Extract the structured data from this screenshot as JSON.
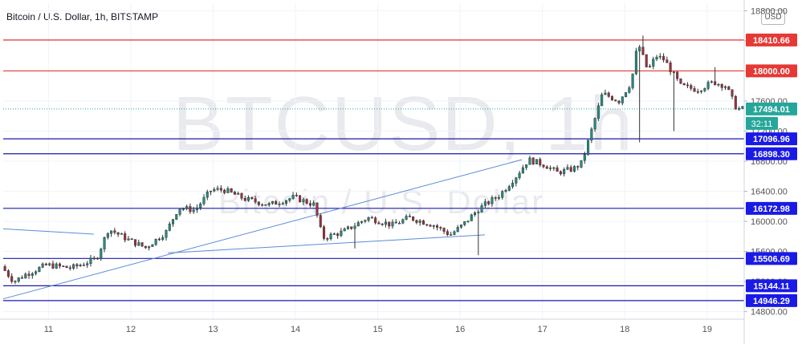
{
  "title": "Bitcoin / U.S. Dollar, 1h, BITSTAMP",
  "currency_button": "USD",
  "watermark": {
    "symbol": "BTCUSD, 1h",
    "description": "Bitcoin / U.S. Dollar"
  },
  "chart_data": {
    "type": "candlestick",
    "ylim": [
      14700,
      18900
    ],
    "x_range": [
      10.45,
      19.45
    ],
    "x_ticks": [
      11,
      12,
      13,
      14,
      15,
      16,
      17,
      18,
      19
    ],
    "x_tick_labels": [
      "11",
      "12",
      "13",
      "14",
      "15",
      "16",
      "17",
      "18",
      "19"
    ],
    "y_ticks": [
      18800,
      18400,
      18000,
      17600,
      17200,
      16800,
      16400,
      16000,
      15600,
      15200,
      14800
    ],
    "y_tick_labels": [
      "18800.00",
      "18400.00",
      "18000.00",
      "17600.00",
      "17200.00",
      "16800.00",
      "16400.00",
      "16000.00",
      "15600.00",
      "15200.00",
      "14800.00"
    ],
    "last_price": {
      "value": 17494.01,
      "label": "17494.01",
      "countdown": "32:11"
    },
    "levels": [
      {
        "value": 18410.66,
        "label": "18410.66",
        "kind": "resistance",
        "color": "#e53935"
      },
      {
        "value": 18000.0,
        "label": "18000.00",
        "kind": "resistance",
        "color": "#e53935"
      },
      {
        "value": 17096.96,
        "label": "17096.96",
        "kind": "support",
        "color": "#1a1aa8"
      },
      {
        "value": 16898.3,
        "label": "16898.30",
        "kind": "support",
        "color": "#1a1aa8"
      },
      {
        "value": 16172.98,
        "label": "16172.98",
        "kind": "support",
        "color": "#1a1aa8"
      },
      {
        "value": 15506.69,
        "label": "15506.69",
        "kind": "support",
        "color": "#1a1aa8"
      },
      {
        "value": 15144.11,
        "label": "15144.11",
        "kind": "support",
        "color": "#1a1aa8"
      },
      {
        "value": 14946.29,
        "label": "14946.29",
        "kind": "support",
        "color": "#1a1aa8"
      }
    ],
    "trendlines": [
      {
        "from": [
          10.45,
          15900
        ],
        "to": [
          11.55,
          15830
        ]
      },
      {
        "from": [
          10.45,
          14970
        ],
        "to": [
          16.75,
          16820
        ]
      },
      {
        "from": [
          12.45,
          15580
        ],
        "to": [
          16.3,
          15820
        ]
      }
    ],
    "anchors": [
      [
        10.45,
        15400
      ],
      [
        10.6,
        15200
      ],
      [
        10.75,
        15300
      ],
      [
        11.0,
        15420
      ],
      [
        11.3,
        15380
      ],
      [
        11.6,
        15500
      ],
      [
        11.75,
        15900
      ],
      [
        12.0,
        15750
      ],
      [
        12.2,
        15650
      ],
      [
        12.45,
        15860
      ],
      [
        12.6,
        16180
      ],
      [
        12.8,
        16150
      ],
      [
        13.0,
        16420
      ],
      [
        13.15,
        16420
      ],
      [
        13.4,
        16300
      ],
      [
        13.7,
        16220
      ],
      [
        14.0,
        16320
      ],
      [
        14.25,
        16220
      ],
      [
        14.35,
        15780
      ],
      [
        14.6,
        15860
      ],
      [
        14.9,
        16050
      ],
      [
        15.2,
        15950
      ],
      [
        15.4,
        16050
      ],
      [
        15.7,
        15950
      ],
      [
        15.9,
        15820
      ],
      [
        16.05,
        15950
      ],
      [
        16.25,
        16170
      ],
      [
        16.5,
        16350
      ],
      [
        16.7,
        16600
      ],
      [
        16.85,
        16820
      ],
      [
        17.05,
        16750
      ],
      [
        17.2,
        16650
      ],
      [
        17.4,
        16700
      ],
      [
        17.5,
        16780
      ],
      [
        17.6,
        17150
      ],
      [
        17.75,
        17700
      ],
      [
        17.95,
        17600
      ],
      [
        18.1,
        17850
      ],
      [
        18.18,
        18380
      ],
      [
        18.3,
        18000
      ],
      [
        18.4,
        18200
      ],
      [
        18.5,
        18150
      ],
      [
        18.7,
        17800
      ],
      [
        18.9,
        17750
      ],
      [
        19.1,
        17850
      ],
      [
        19.25,
        17800
      ],
      [
        19.38,
        17494
      ]
    ],
    "wicks": [
      [
        14.7,
        15640
      ],
      [
        16.2,
        15550
      ],
      [
        18.18,
        17050
      ],
      [
        18.6,
        17200
      ],
      [
        18.2,
        18470
      ],
      [
        19.1,
        18050
      ]
    ]
  }
}
